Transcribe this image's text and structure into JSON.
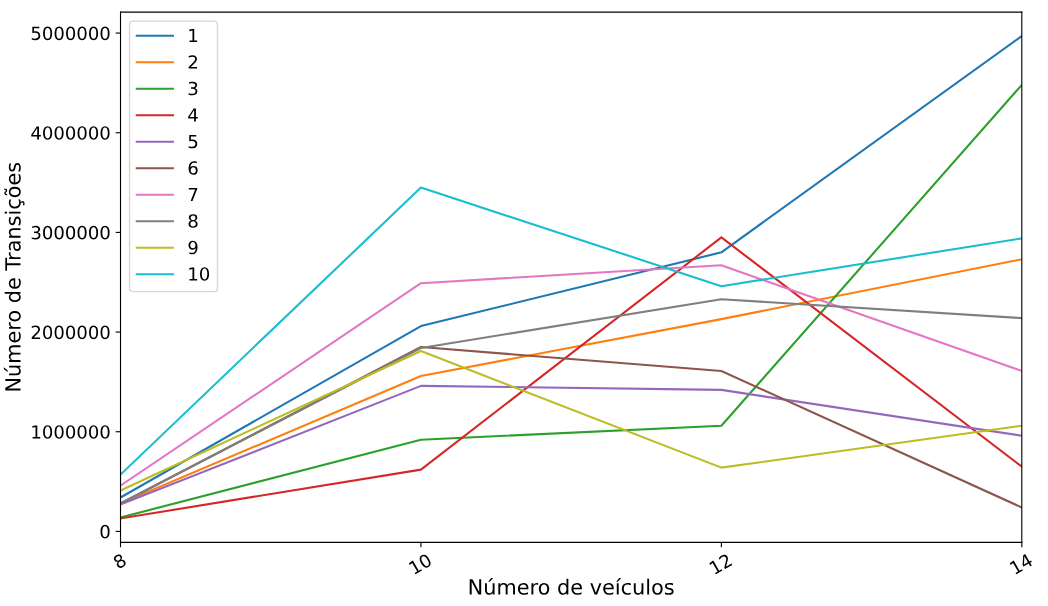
{
  "chart_data": {
    "type": "line",
    "xlabel": "Número de veículos",
    "ylabel": "Número de Transições",
    "x": [
      8,
      10,
      12,
      14
    ],
    "xlim": [
      8,
      14
    ],
    "xticks": [
      8,
      10,
      12,
      14
    ],
    "ylim": [
      -110000,
      5210000
    ],
    "yticks": [
      0,
      1000000,
      2000000,
      3000000,
      4000000,
      5000000
    ],
    "grid": false,
    "legend": "top left",
    "marker": "none",
    "line_style": "solid",
    "series": [
      {
        "name": "1",
        "color": "#1f77b4",
        "values": [
          340000,
          2060000,
          2800000,
          4970000
        ]
      },
      {
        "name": "2",
        "color": "#ff7f0e",
        "values": [
          280000,
          1560000,
          2130000,
          2730000
        ]
      },
      {
        "name": "3",
        "color": "#2ca02c",
        "values": [
          140000,
          920000,
          1060000,
          4480000
        ]
      },
      {
        "name": "4",
        "color": "#d62728",
        "values": [
          130000,
          620000,
          2950000,
          650000
        ]
      },
      {
        "name": "5",
        "color": "#9467bd",
        "values": [
          270000,
          1460000,
          1420000,
          960000
        ]
      },
      {
        "name": "6",
        "color": "#8c564b",
        "values": [
          280000,
          1850000,
          1610000,
          240000
        ]
      },
      {
        "name": "7",
        "color": "#e377c2",
        "values": [
          460000,
          2490000,
          2670000,
          1610000
        ]
      },
      {
        "name": "8",
        "color": "#7f7f7f",
        "values": [
          280000,
          1840000,
          2330000,
          2140000
        ]
      },
      {
        "name": "9",
        "color": "#bcbd22",
        "values": [
          410000,
          1810000,
          640000,
          1060000
        ]
      },
      {
        "name": "10",
        "color": "#17becf",
        "values": [
          570000,
          3450000,
          2460000,
          2940000
        ]
      }
    ]
  }
}
